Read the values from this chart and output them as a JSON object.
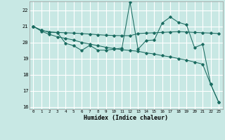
{
  "xlabel": "Humidex (Indice chaleur)",
  "bg_color": "#c8e8e4",
  "grid_color": "#ffffff",
  "line_color": "#1a6b60",
  "xlim": [
    -0.5,
    23.5
  ],
  "ylim": [
    15.85,
    22.55
  ],
  "yticks": [
    16,
    17,
    18,
    19,
    20,
    21,
    22
  ],
  "xticks": [
    0,
    1,
    2,
    3,
    4,
    5,
    6,
    7,
    8,
    9,
    10,
    11,
    12,
    13,
    14,
    15,
    16,
    17,
    18,
    19,
    20,
    21,
    22,
    23
  ],
  "line1_x": [
    0,
    1,
    2,
    3,
    4,
    5,
    6,
    7,
    8,
    9,
    10,
    11,
    12,
    13,
    14,
    15,
    16,
    17,
    18,
    19,
    20,
    21,
    22,
    23
  ],
  "line1_y": [
    21.0,
    20.75,
    20.65,
    20.62,
    20.6,
    20.58,
    20.55,
    20.52,
    20.48,
    20.45,
    20.43,
    20.42,
    20.42,
    20.55,
    20.58,
    20.6,
    20.62,
    20.65,
    20.67,
    20.65,
    20.62,
    20.6,
    20.58,
    20.55
  ],
  "line2_x": [
    0,
    1,
    2,
    3,
    4,
    5,
    6,
    7,
    8,
    9,
    10,
    11,
    12,
    13,
    14,
    15,
    16,
    17,
    18,
    19,
    20,
    21,
    22,
    23
  ],
  "line2_y": [
    21.0,
    20.75,
    20.65,
    20.6,
    19.95,
    19.8,
    19.5,
    19.82,
    19.52,
    19.52,
    19.58,
    19.65,
    22.5,
    19.58,
    20.12,
    20.15,
    21.22,
    21.58,
    21.25,
    21.1,
    19.68,
    19.88,
    17.4,
    16.28
  ],
  "line3_x": [
    0,
    1,
    2,
    3,
    4,
    5,
    6,
    7,
    8,
    9,
    10,
    11,
    12,
    13,
    14,
    15,
    16,
    17,
    18,
    19,
    20,
    21,
    22,
    23
  ],
  "line3_y": [
    21.0,
    20.7,
    20.5,
    20.35,
    20.25,
    20.15,
    20.0,
    19.9,
    19.8,
    19.7,
    19.62,
    19.55,
    19.5,
    19.45,
    19.35,
    19.28,
    19.18,
    19.1,
    19.0,
    18.9,
    18.78,
    18.65,
    17.4,
    16.28
  ]
}
